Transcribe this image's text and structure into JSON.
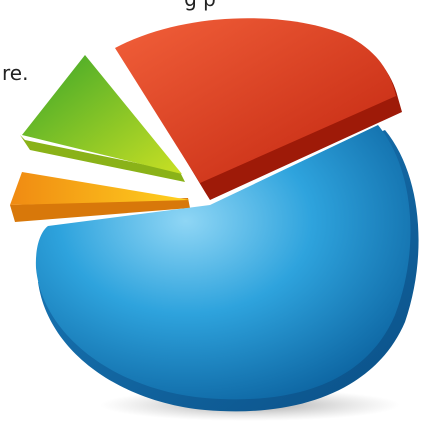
{
  "text": {
    "top": "g p",
    "left": "re."
  }
}
